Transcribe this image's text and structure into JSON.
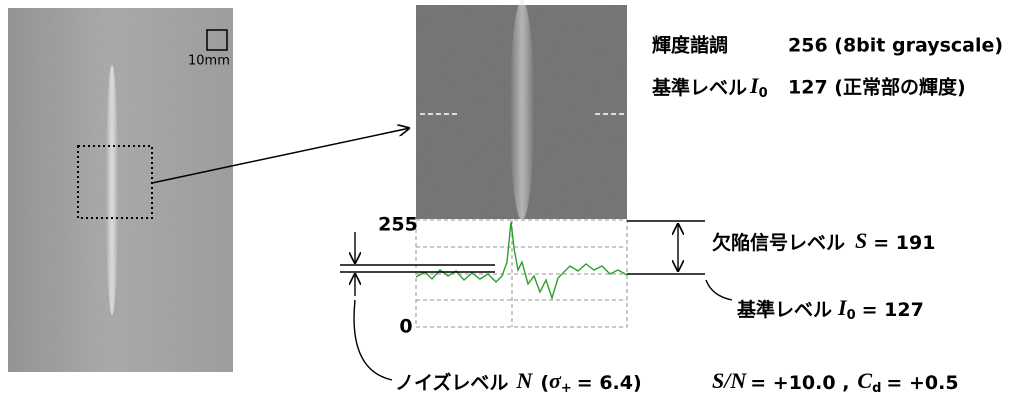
{
  "scale": "10mm",
  "spec": {
    "gradation_label": "輝度諧調",
    "gradation_value": "256 (8bit grayscale)",
    "reference_label": "基準レベル",
    "reference_symbol": "I",
    "reference_sub": "0",
    "reference_value": "127 (正常部の輝度)"
  },
  "profile": {
    "top_label": "255",
    "bottom_label": "0"
  },
  "signal": {
    "label": "欠陥信号レベル",
    "symbol": "S",
    "value": "= 191"
  },
  "reference": {
    "label": "基準レベル",
    "symbol": "I",
    "sub": "0",
    "value": "= 127"
  },
  "noise": {
    "label": "ノイズレベル",
    "symbol": "N",
    "open": "(",
    "sigma": "σ",
    "sigma_sub": "+",
    "value": "= 6.4)"
  },
  "result": {
    "sn_symbol": "S/N",
    "sn_value": "= +10.0 ,",
    "cd_symbol": "C",
    "cd_sub": "d",
    "cd_value": "= +0.5"
  }
}
